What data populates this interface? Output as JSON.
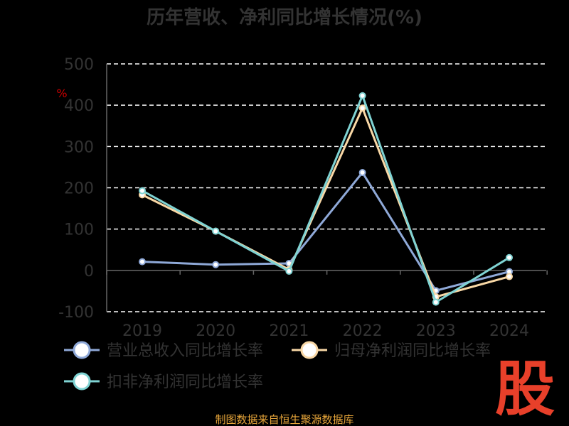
{
  "chart_data": {
    "type": "line",
    "title": "历年营收、净利同比增长情况(%)",
    "ylabel": "%",
    "categories": [
      "2019",
      "2020",
      "2021",
      "2022",
      "2023",
      "2024"
    ],
    "ylim": [
      -100,
      500
    ],
    "yticks": [
      "500",
      "400",
      "300",
      "200",
      "100",
      "0",
      "-100"
    ],
    "grid": true,
    "legend_position": "bottom-left",
    "series": [
      {
        "name": "营业总收入同比增长率",
        "color": "#8fa9d8",
        "values": [
          21,
          14,
          17,
          237,
          -49,
          -3
        ]
      },
      {
        "name": "归母净利润同比增长率",
        "color": "#f9d8a6",
        "values": [
          183,
          95,
          2,
          393,
          -64,
          -15
        ]
      },
      {
        "name": "扣非净利润同比增长率",
        "color": "#7fd3d3",
        "values": [
          193,
          95,
          -2,
          423,
          -77,
          31
        ]
      }
    ]
  },
  "logo_text": "股",
  "source": "制图数据来自恒生聚源数据库",
  "colors": {
    "background": "#000000",
    "title": "#333333",
    "axis": "#666666",
    "grid": "#ffffff",
    "ylabel": "#cc0000",
    "logo": "#e8402a",
    "source": "#e8a63a"
  }
}
